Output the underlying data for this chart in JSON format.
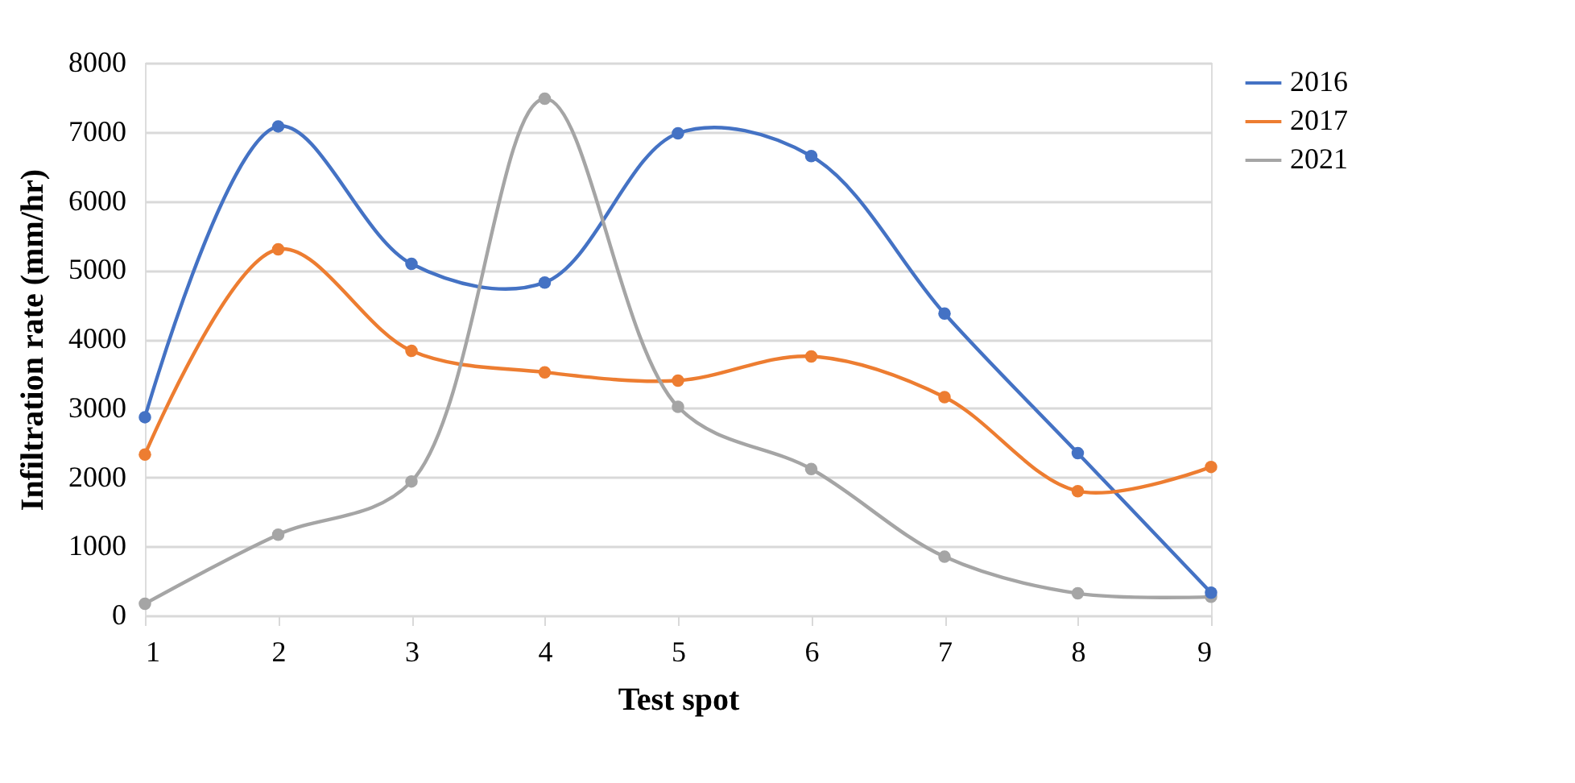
{
  "chart_data": {
    "type": "line",
    "xlabel": "Test spot",
    "ylabel": "Infiltration rate (mm/hr)",
    "x": [
      1,
      2,
      3,
      4,
      5,
      6,
      7,
      8,
      9
    ],
    "series": [
      {
        "name": "2016",
        "color": "#4472c4",
        "values": [
          2870,
          7080,
          5090,
          4820,
          6980,
          6650,
          4370,
          2350,
          330
        ]
      },
      {
        "name": "2017",
        "color": "#ed7d31",
        "values": [
          2330,
          5300,
          3830,
          3520,
          3400,
          3750,
          3160,
          1800,
          2150
        ]
      },
      {
        "name": "2021",
        "color": "#a5a5a5",
        "values": [
          170,
          1170,
          1940,
          7480,
          3020,
          2120,
          850,
          320,
          270
        ]
      }
    ],
    "xlim": [
      1,
      9
    ],
    "xticks": [
      1,
      2,
      3,
      4,
      5,
      6,
      7,
      8,
      9
    ],
    "ylim": [
      0,
      8000
    ],
    "yticks": [
      0,
      1000,
      2000,
      3000,
      4000,
      5000,
      6000,
      7000,
      8000
    ],
    "grid": "y",
    "legend": "right",
    "marker": "circle",
    "line_style": "solid"
  }
}
